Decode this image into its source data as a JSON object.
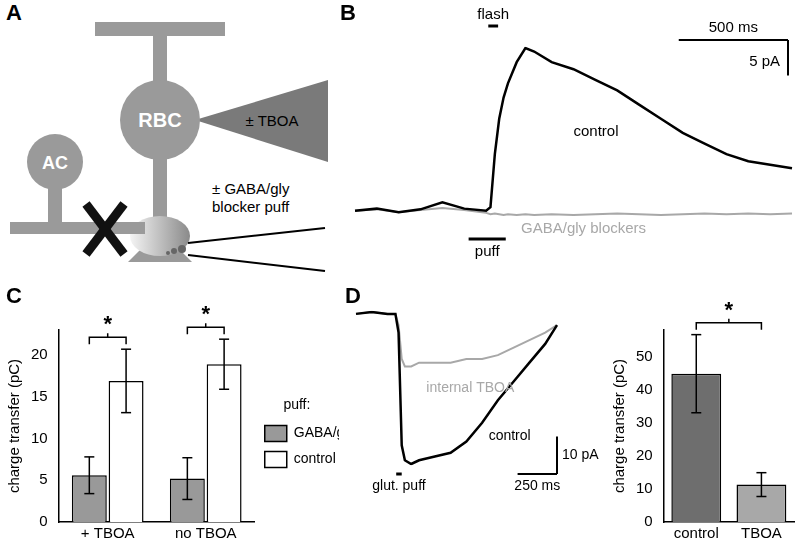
{
  "panel_labels": [
    "A",
    "B",
    "C",
    "D"
  ],
  "diagram": {
    "bipolar_cell": "RBC",
    "amacrine_cell": "AC",
    "pipette_label": "± TBOA",
    "puff_label": [
      "± GABA/gly",
      "blocker puff"
    ]
  },
  "chart_data": [
    {
      "type": "line",
      "tick_labels": false,
      "x": [
        0,
        100,
        200,
        300,
        400,
        500,
        600,
        620,
        640,
        660,
        680,
        700,
        740,
        780,
        820,
        900,
        1000,
        1100,
        1200,
        1300,
        1400,
        1500,
        1600,
        1700,
        1800,
        1900,
        2000
      ],
      "series": [
        {
          "name": "control",
          "color": "#000000",
          "values": [
            0,
            0.3,
            -0.2,
            0.2,
            1.2,
            0.3,
            0,
            0.5,
            8,
            13,
            16,
            18,
            21,
            23,
            22.5,
            21,
            20,
            18.5,
            17,
            15,
            13,
            11,
            9.5,
            8,
            7,
            6.5,
            6
          ]
        },
        {
          "name": "GABA/gly blockers",
          "color": "#a8a8a8",
          "values": [
            0,
            0.2,
            -0.2,
            0.1,
            0.4,
            0.1,
            -0.3,
            -0.5,
            -0.4,
            -0.5,
            -0.6,
            -0.5,
            -0.6,
            -0.5,
            -0.6,
            -0.5,
            -0.6,
            -0.5,
            -0.4,
            -0.5,
            -0.6,
            -0.5,
            -0.4,
            -0.5,
            -0.4,
            -0.5,
            -0.4
          ]
        }
      ],
      "scale_bars": {
        "x": {
          "value": 500,
          "label": "500 ms"
        },
        "y": {
          "value": 5,
          "label": "5 pA"
        }
      },
      "stimuli": [
        {
          "label": "flash",
          "start": 610,
          "end": 655
        },
        {
          "label": "puff",
          "start": 520,
          "end": 690
        }
      ]
    },
    {
      "type": "bar",
      "y_label": "charge transfer (pC)",
      "categories": [
        "+ TBOA",
        "no TBOA"
      ],
      "series": [
        {
          "name": "GABA/gly blockers",
          "color": "#999999",
          "values": [
            5.6,
            5.2
          ],
          "errors": [
            2.2,
            2.5
          ]
        },
        {
          "name": "control",
          "color": "#ffffff",
          "values": [
            16.9,
            18.9
          ],
          "errors": [
            3.8,
            3.0
          ]
        }
      ],
      "ylim": [
        0,
        23
      ],
      "yticks": [
        0,
        5,
        10,
        15,
        20
      ],
      "grid": false,
      "legend": "right",
      "legend_title": "puff:",
      "significance": [
        {
          "categories": [
            "+ TBOA"
          ],
          "label": "*"
        },
        {
          "categories": [
            "no TBOA"
          ],
          "label": "*"
        }
      ]
    },
    {
      "type": "line",
      "tick_labels": false,
      "x": [
        0,
        100,
        200,
        250,
        270,
        290,
        310,
        350,
        400,
        500,
        600,
        700,
        800,
        900,
        1000,
        1100,
        1200,
        1275
      ],
      "series": [
        {
          "name": "control",
          "color": "#000000",
          "values": [
            0,
            0.5,
            0,
            0,
            -5,
            -35,
            -39,
            -40,
            -39,
            -38,
            -37,
            -34,
            -29,
            -23,
            -18,
            -13,
            -8,
            -3
          ]
        },
        {
          "name": "internal TBOA",
          "color": "#a8a8a8",
          "values": [
            0,
            0.5,
            0,
            0,
            -3,
            -12,
            -14,
            -14,
            -13,
            -13,
            -13,
            -12,
            -12,
            -11,
            -9,
            -7,
            -5,
            -3
          ]
        }
      ],
      "scale_bars": {
        "x": {
          "value": 250,
          "label": "250 ms"
        },
        "y": {
          "value": 10,
          "label": "10 pA"
        }
      },
      "stimuli": [
        {
          "label": "glut. puff",
          "start": 255,
          "end": 290
        }
      ]
    },
    {
      "type": "bar",
      "y_label": "charge transfer (pC)",
      "categories": [
        "control",
        "TBOA"
      ],
      "values": [
        44.8,
        11.3
      ],
      "errors": [
        11.8,
        3.6
      ],
      "colors": [
        "#6e6e6e",
        "#a8a8a8"
      ],
      "ylim": [
        0,
        58
      ],
      "yticks": [
        0,
        10,
        20,
        30,
        40,
        50
      ],
      "grid": false,
      "significance": [
        {
          "categories": [
            "control",
            "TBOA"
          ],
          "label": "*"
        }
      ]
    }
  ]
}
